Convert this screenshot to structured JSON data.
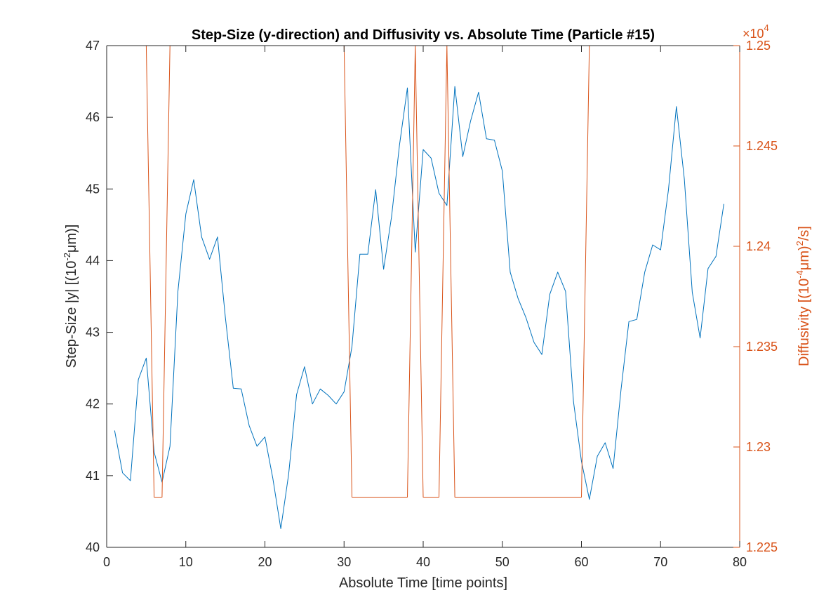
{
  "chart_data": {
    "type": "line",
    "title": "Step-Size (y-direction) and Diffusivity vs. Absolute Time (Particle #15)",
    "xlabel": "Absolute Time [time points]",
    "ylabel_left": "Step-Size |y| [(10",
    "ylabel_left_sup": "-2",
    "ylabel_left_unit": "μm)]",
    "ylabel_right": "Diffusivity [(10",
    "ylabel_right_sup1": "-4",
    "ylabel_right_mid": "μm)",
    "ylabel_right_sup2": "2",
    "ylabel_right_end": "/s]",
    "right_exponent_prefix": "×10",
    "right_exponent_power": "4",
    "xlim": [
      0,
      80
    ],
    "ylim_left": [
      40,
      47
    ],
    "ylim_right": [
      1.225,
      1.25
    ],
    "x_ticks": [
      0,
      10,
      20,
      30,
      40,
      50,
      60,
      70,
      80
    ],
    "x_tick_labels": [
      "0",
      "10",
      "20",
      "30",
      "40",
      "50",
      "60",
      "70",
      "80"
    ],
    "y_left_ticks": [
      40,
      41,
      42,
      43,
      44,
      45,
      46,
      47
    ],
    "y_left_tick_labels": [
      "40",
      "41",
      "42",
      "43",
      "44",
      "45",
      "46",
      "47"
    ],
    "y_right_ticks": [
      1.225,
      1.23,
      1.235,
      1.24,
      1.245,
      1.25
    ],
    "y_right_tick_labels": [
      "1.225",
      "1.23",
      "1.235",
      "1.24",
      "1.245",
      "1.25"
    ],
    "grid": false,
    "colors": {
      "left": "#0072BD",
      "right": "#D95319",
      "axis": "#262626"
    },
    "series": [
      {
        "axis": "left",
        "x": [
          1,
          2,
          3,
          4,
          5,
          6,
          7,
          8,
          9,
          10,
          11,
          12,
          13,
          14,
          15,
          16,
          17,
          18,
          19,
          20,
          21,
          22,
          23,
          24,
          25,
          26,
          27,
          28,
          29,
          30,
          31,
          32,
          33,
          34,
          35,
          36,
          37,
          38,
          39,
          40,
          41,
          42,
          43,
          44,
          45,
          46,
          47,
          48,
          49,
          50,
          51,
          52,
          53,
          54,
          55,
          56,
          57,
          58,
          59,
          60,
          61,
          62,
          63,
          64,
          65,
          66,
          67,
          68,
          69,
          70,
          71,
          72,
          73,
          74,
          75,
          76,
          77,
          78
        ],
        "values": [
          41.63,
          41.04,
          40.93,
          42.34,
          42.64,
          41.33,
          40.91,
          41.41,
          43.57,
          44.65,
          45.13,
          44.33,
          44.02,
          44.33,
          43.21,
          42.22,
          42.21,
          41.7,
          41.41,
          41.54,
          40.96,
          40.26,
          41.02,
          42.13,
          42.52,
          42.0,
          42.21,
          42.12,
          42.0,
          42.17,
          42.8,
          44.09,
          44.09,
          44.99,
          43.88,
          44.61,
          45.61,
          46.41,
          44.12,
          45.55,
          45.43,
          44.94,
          44.77,
          46.43,
          45.45,
          45.95,
          46.35,
          45.7,
          45.68,
          45.25,
          43.84,
          43.47,
          43.2,
          42.86,
          42.69,
          43.53,
          43.84,
          43.57,
          42.03,
          41.2,
          40.67,
          41.27,
          41.46,
          41.1,
          42.2,
          43.15,
          43.18,
          43.84,
          44.22,
          44.15,
          44.99,
          46.15,
          45.14,
          43.56,
          42.92,
          43.89,
          44.06,
          44.79
        ]
      },
      {
        "axis": "right",
        "x": [
          1,
          5,
          6,
          7,
          8,
          30,
          31,
          38,
          39,
          40,
          42,
          43,
          44,
          60,
          61,
          78
        ],
        "values": [
          1.25,
          1.25,
          1.2275,
          1.2275,
          1.25,
          1.25,
          1.2275,
          1.2275,
          1.25,
          1.2275,
          1.2275,
          1.25,
          1.2275,
          1.2275,
          1.25,
          1.25
        ]
      }
    ]
  }
}
